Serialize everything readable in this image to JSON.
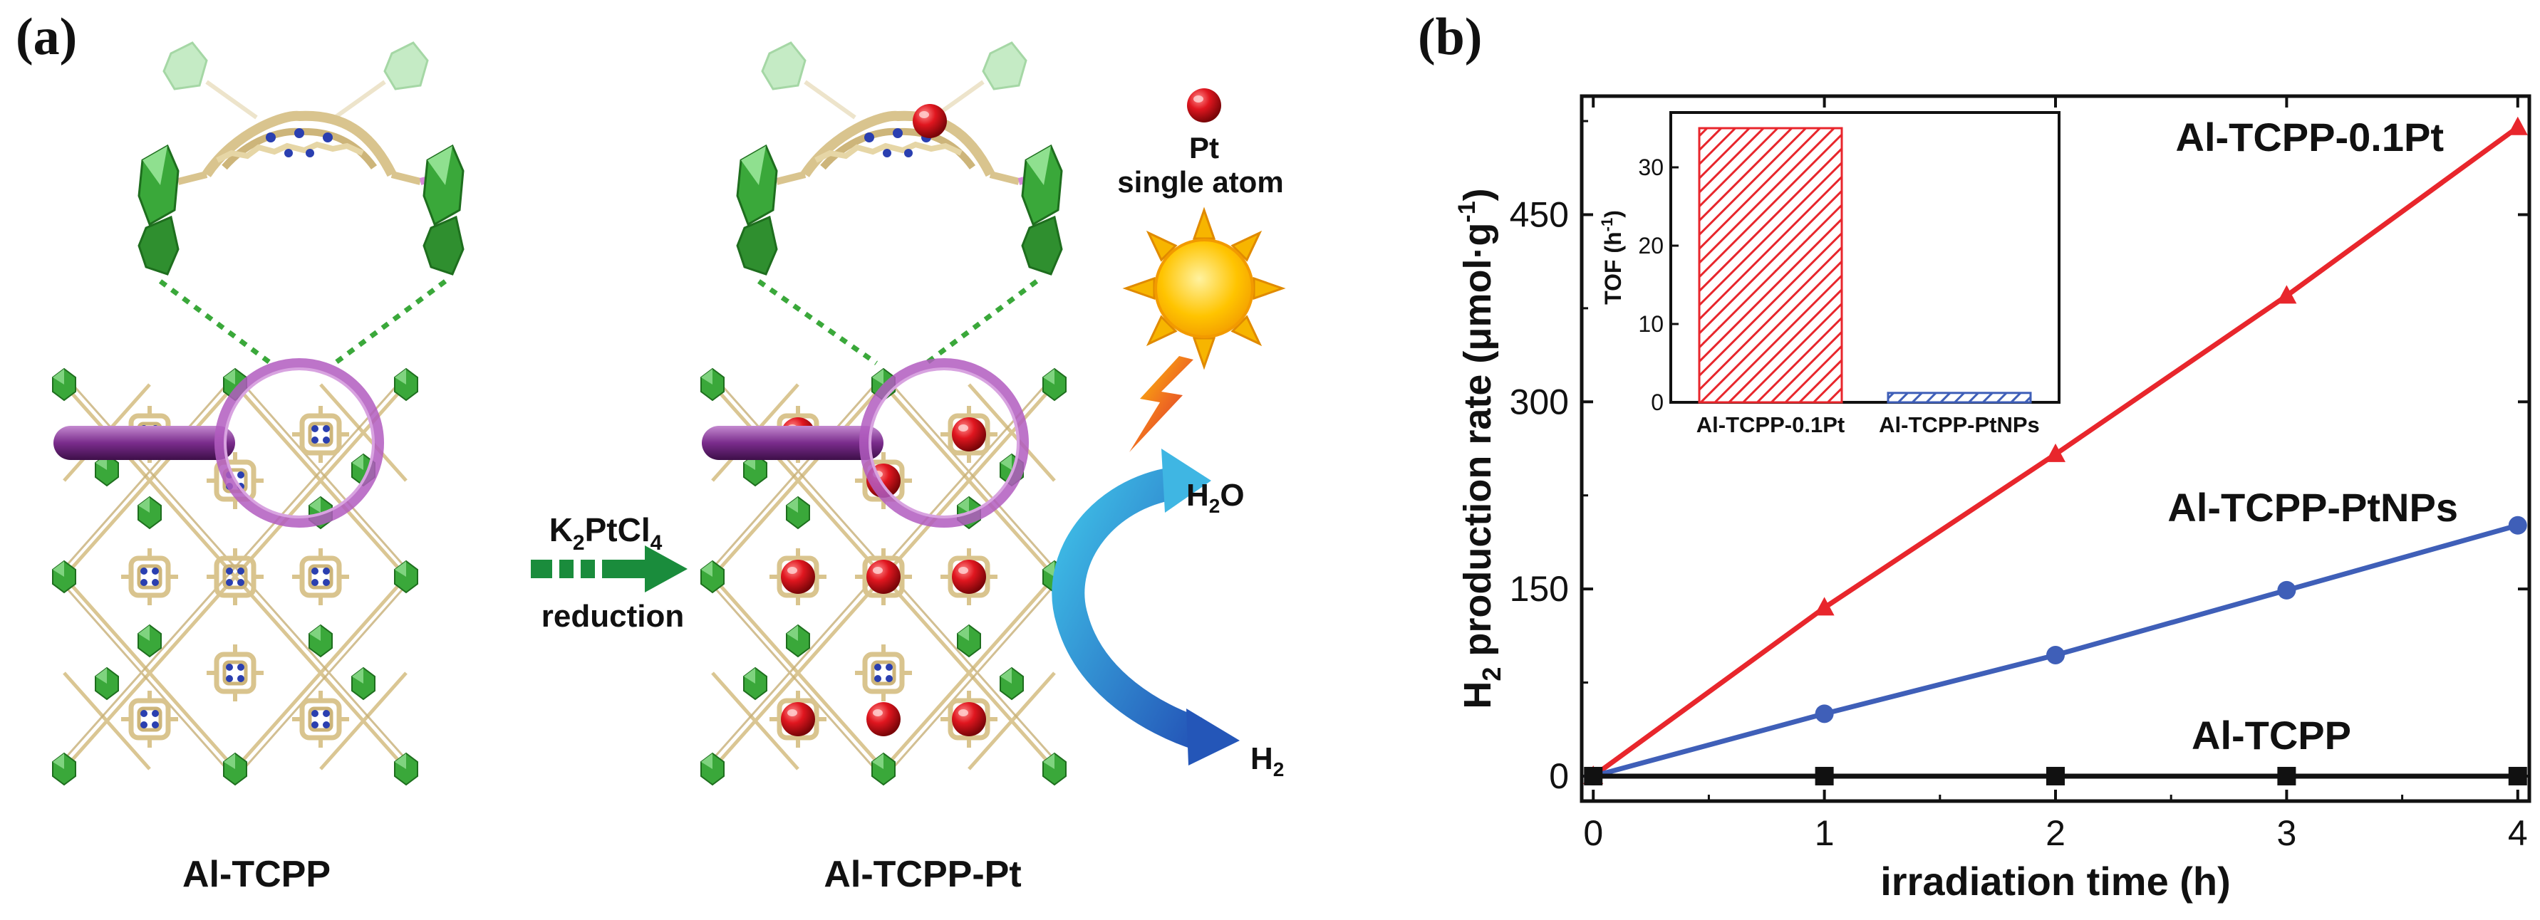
{
  "panel_a": {
    "letter": "(a)",
    "left_label": "Al-TCPP",
    "right_label": "Al-TCPP-Pt",
    "reagent_main": "K",
    "reagent_sub1": "2",
    "reagent_mid": "PtCl",
    "reagent_sub2": "4",
    "reduction_label": "reduction",
    "legend_line1": "Pt",
    "legend_line2": "single atom",
    "water_main": "H",
    "water_sub": "2",
    "water_tail": "O",
    "hydrogen_main": "H",
    "hydrogen_sub": "2",
    "colors": {
      "framework": "#d9c48e",
      "node": "#3aa83a",
      "nitrogen": "#2a3fb0",
      "magnifier": "#b25cbf",
      "pt_atom": "#d81f26",
      "arrow": "#1a8c3c",
      "sun": "#f7b500",
      "water_arrow": "#2aa7d6"
    },
    "icons": [
      "magnifier-icon",
      "sun-icon",
      "lightning-icon",
      "pt-atom-icon",
      "reaction-arrow-icon"
    ]
  },
  "panel_b": {
    "letter": "(b)",
    "chart_data": {
      "type": "line",
      "xlabel": "irradiation time (h)",
      "ylabel_main": "H",
      "ylabel_sub": "2",
      "ylabel_rest": " production rate (μmol·g",
      "ylabel_sup": "-1",
      "ylabel_end": ")",
      "xlim": [
        -0.05,
        4.05
      ],
      "ylim": [
        -20,
        545
      ],
      "x_ticks": [
        0,
        1,
        2,
        3,
        4
      ],
      "y_ticks": [
        0,
        150,
        300,
        450
      ],
      "grid": false,
      "series": [
        {
          "name": "Al-TCPP-0.1Pt",
          "color": "#e8262c",
          "marker": "triangle",
          "x": [
            0,
            1,
            2,
            3,
            4
          ],
          "y": [
            0,
            135,
            258,
            385,
            520
          ]
        },
        {
          "name": "Al-TCPP-PtNPs",
          "color": "#3f5fb8",
          "marker": "circle",
          "x": [
            0,
            1,
            2,
            3,
            4
          ],
          "y": [
            0,
            50,
            97,
            149,
            201
          ]
        },
        {
          "name": "Al-TCPP",
          "color": "#111111",
          "marker": "square",
          "x": [
            0,
            1,
            2,
            3,
            4
          ],
          "y": [
            0,
            0,
            0,
            0,
            0
          ]
        }
      ],
      "inset": {
        "type": "bar",
        "ylabel_main": "TOF (h",
        "ylabel_sup": "-1",
        "ylabel_end": ")",
        "ylim": [
          0,
          37
        ],
        "y_ticks": [
          0,
          10,
          20,
          30
        ],
        "categories": [
          "Al-TCPP-0.1Pt",
          "Al-TCPP-PtNPs"
        ],
        "values": [
          35,
          1.2
        ],
        "colors": [
          "#e8262c",
          "#3f5fb8"
        ]
      }
    }
  }
}
